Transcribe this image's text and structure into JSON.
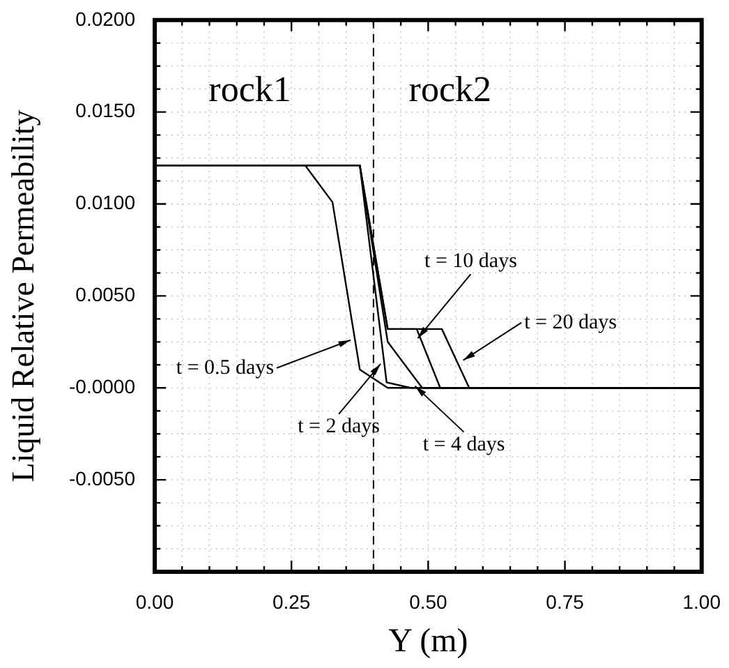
{
  "chart_data": {
    "type": "line",
    "xlabel": "Y (m)",
    "ylabel": "Liquid Relative Permeability",
    "xlim": [
      0,
      1
    ],
    "ylim": [
      -0.01,
      0.02
    ],
    "xticks": [
      {
        "value": 0,
        "label": "0.00"
      },
      {
        "value": 0.05,
        "label": null
      },
      {
        "value": 0.1,
        "label": null
      },
      {
        "value": 0.15,
        "label": null
      },
      {
        "value": 0.2,
        "label": null
      },
      {
        "value": 0.25,
        "label": "0.25"
      },
      {
        "value": 0.3,
        "label": null
      },
      {
        "value": 0.35,
        "label": null
      },
      {
        "value": 0.4,
        "label": null
      },
      {
        "value": 0.45,
        "label": null
      },
      {
        "value": 0.5,
        "label": "0.50"
      },
      {
        "value": 0.55,
        "label": null
      },
      {
        "value": 0.6,
        "label": null
      },
      {
        "value": 0.65,
        "label": null
      },
      {
        "value": 0.7,
        "label": null
      },
      {
        "value": 0.75,
        "label": "0.75"
      },
      {
        "value": 0.8,
        "label": null
      },
      {
        "value": 0.85,
        "label": null
      },
      {
        "value": 0.9,
        "label": null
      },
      {
        "value": 0.95,
        "label": null
      },
      {
        "value": 1,
        "label": "1.00"
      }
    ],
    "yticks": [
      {
        "value": -0.01,
        "label": null
      },
      {
        "value": -0.00875,
        "label": null
      },
      {
        "value": -0.0075,
        "label": null
      },
      {
        "value": -0.00625,
        "label": null
      },
      {
        "value": -0.005,
        "label": "-0.0050"
      },
      {
        "value": -0.00375,
        "label": null
      },
      {
        "value": -0.0025,
        "label": null
      },
      {
        "value": -0.00125,
        "label": null
      },
      {
        "value": 0,
        "label": "-0.0000"
      },
      {
        "value": 0.00125,
        "label": null
      },
      {
        "value": 0.0025,
        "label": null
      },
      {
        "value": 0.00375,
        "label": null
      },
      {
        "value": 0.005,
        "label": "0.0050"
      },
      {
        "value": 0.00625,
        "label": null
      },
      {
        "value": 0.0075,
        "label": null
      },
      {
        "value": 0.00875,
        "label": null
      },
      {
        "value": 0.01,
        "label": "0.0100"
      },
      {
        "value": 0.01125,
        "label": null
      },
      {
        "value": 0.0125,
        "label": null
      },
      {
        "value": 0.01375,
        "label": null
      },
      {
        "value": 0.015,
        "label": "0.0150"
      },
      {
        "value": 0.01625,
        "label": null
      },
      {
        "value": 0.0175,
        "label": null
      },
      {
        "value": 0.01875,
        "label": null
      },
      {
        "value": 0.02,
        "label": "0.0200"
      }
    ],
    "grid": true,
    "marker": "none",
    "line_style": "solid",
    "series": [
      {
        "color": "#000000",
        "x": [
          0,
          0.275,
          0.325,
          0.375,
          0.426,
          1
        ],
        "values": [
          0.0121,
          0.0121,
          0.0101,
          0.001,
          0,
          0
        ]
      },
      {
        "color": "#000000",
        "x": [
          0,
          0.375,
          0.424,
          0.468,
          1
        ],
        "values": [
          0.0121,
          0.0121,
          0.0003,
          0,
          0
        ]
      },
      {
        "color": "#000000",
        "x": [
          0,
          0.375,
          0.426,
          0.489,
          1
        ],
        "values": [
          0.0121,
          0.0121,
          0.0025,
          0,
          0
        ]
      },
      {
        "color": "#000000",
        "x": [
          0,
          0.375,
          0.426,
          0.479,
          0.522,
          1
        ],
        "values": [
          0.0121,
          0.0121,
          0.0032,
          0.0032,
          0,
          0
        ]
      },
      {
        "color": "#000000",
        "x": [
          0,
          0.375,
          0.426,
          0.525,
          0.575,
          1
        ],
        "values": [
          0.0121,
          0.0121,
          0.0032,
          0.0032,
          0,
          0
        ]
      }
    ],
    "ref_lines": [
      {
        "axis": "x",
        "value": 0.4,
        "line_style": "dashed",
        "color": "#000000"
      }
    ],
    "annotations": [
      "rock1",
      "rock2",
      {
        "text": "t = 0.5 days",
        "x": 0.358,
        "y": 0.0026
      },
      {
        "text": "t = 2 days",
        "x": 0.413,
        "y": 0.0013
      },
      {
        "text": "t = 10 days",
        "x": 0.481,
        "y": 0.0027
      },
      {
        "text": "t = 20 days",
        "x": 0.564,
        "y": 0.0015
      },
      {
        "text": "t = 4 days",
        "x": 0.476,
        "y": 0.0001
      }
    ]
  }
}
